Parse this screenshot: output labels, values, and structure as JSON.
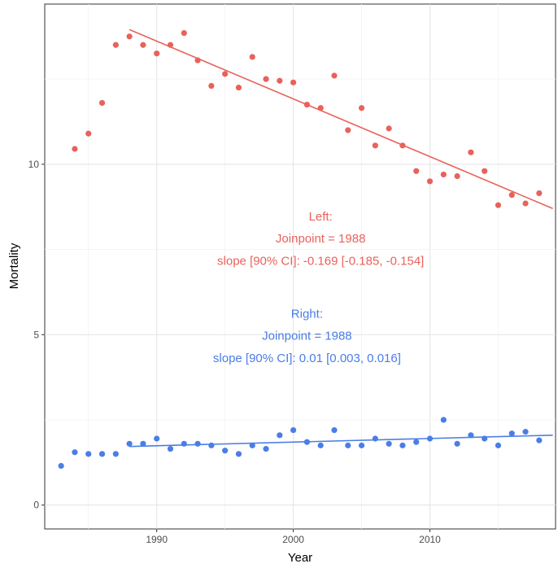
{
  "chart_data": {
    "type": "scatter",
    "xlabel": "Year",
    "ylabel": "Mortality",
    "xlim": [
      1981.8,
      2019.2
    ],
    "ylim": [
      -0.7,
      14.7
    ],
    "x_ticks": [
      1990,
      2000,
      2010
    ],
    "y_ticks": [
      0,
      5,
      10
    ],
    "grid": true,
    "series": [
      {
        "color": "#e8625b",
        "x": [
          1984,
          1985,
          1986,
          1987,
          1988,
          1989,
          1990,
          1991,
          1992,
          1993,
          1994,
          1995,
          1996,
          1997,
          1998,
          1999,
          2000,
          2001,
          2002,
          2003,
          2004,
          2005,
          2006,
          2007,
          2008,
          2009,
          2010,
          2011,
          2012,
          2013,
          2014,
          2015,
          2016,
          2017,
          2018
        ],
        "y": [
          10.45,
          10.9,
          11.8,
          13.5,
          13.75,
          13.5,
          13.25,
          13.5,
          13.85,
          13.05,
          12.3,
          12.65,
          12.25,
          13.15,
          12.5,
          12.45,
          12.4,
          11.75,
          11.65,
          12.6,
          11.0,
          11.65,
          10.55,
          11.05,
          10.55,
          9.8,
          9.5,
          9.7,
          9.65,
          10.35,
          9.8,
          8.8,
          9.1,
          8.85,
          9.15
        ],
        "fit": {
          "x": [
            1988,
            2019
          ],
          "y": [
            13.95,
            8.7
          ]
        },
        "annotation": {
          "lines": [
            "Left:",
            "Joinpoint = 1988",
            "slope [90% CI]: -0.169 [-0.185, -0.154]"
          ],
          "x": 2002,
          "y": [
            8.35,
            7.7,
            7.05
          ]
        }
      },
      {
        "color": "#4a7ee6",
        "x": [
          1983,
          1984,
          1985,
          1986,
          1987,
          1988,
          1989,
          1990,
          1991,
          1992,
          1993,
          1994,
          1995,
          1996,
          1997,
          1998,
          1999,
          2000,
          2001,
          2002,
          2003,
          2004,
          2005,
          2006,
          2007,
          2008,
          2009,
          2010,
          2011,
          2012,
          2013,
          2014,
          2015,
          2016,
          2017,
          2018
        ],
        "y": [
          1.15,
          1.55,
          1.5,
          1.5,
          1.5,
          1.8,
          1.8,
          1.95,
          1.65,
          1.8,
          1.8,
          1.75,
          1.6,
          1.5,
          1.75,
          1.65,
          2.05,
          2.2,
          1.85,
          1.75,
          2.2,
          1.75,
          1.75,
          1.95,
          1.8,
          1.75,
          1.85,
          1.95,
          2.5,
          1.8,
          2.05,
          1.95,
          1.75,
          2.1,
          2.15,
          1.9
        ],
        "fit": {
          "x": [
            1988,
            2019
          ],
          "y": [
            1.72,
            2.05
          ]
        },
        "annotation": {
          "lines": [
            "Right:",
            "Joinpoint = 1988",
            "slope [90% CI]: 0.01 [0.003, 0.016]"
          ],
          "x": 2001,
          "y": [
            5.5,
            4.85,
            4.2
          ]
        }
      }
    ]
  }
}
